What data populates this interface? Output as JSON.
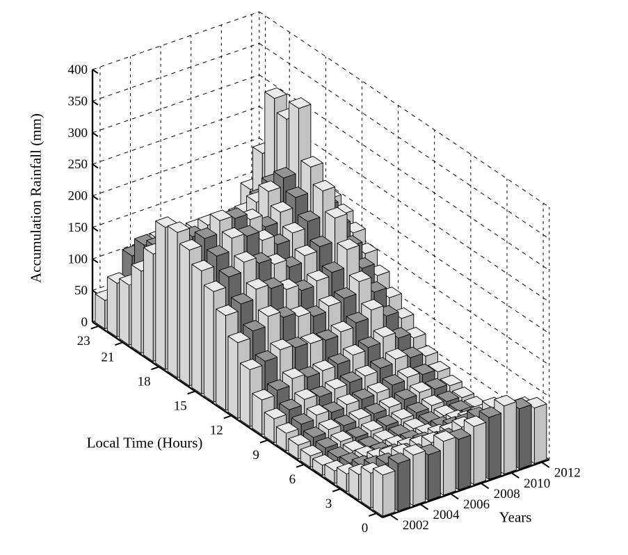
{
  "chart_data": {
    "type": "bar",
    "variant": "3d-bar (MATLAB bar3 style, grayscale)",
    "title": "",
    "xlabel": "Years",
    "ylabel": "Local Time (Hours)",
    "zlabel": "Accumulation Rainfall (mm)",
    "zlim": [
      0,
      400
    ],
    "z_ticks": [
      0,
      50,
      100,
      150,
      200,
      250,
      300,
      350,
      400
    ],
    "y_ticks": [
      0,
      3,
      6,
      9,
      12,
      15,
      18,
      21,
      23
    ],
    "x_tick_labels": [
      "2002",
      "2004",
      "2006",
      "2008",
      "2010",
      "2012"
    ],
    "hours": [
      0,
      1,
      2,
      3,
      4,
      5,
      6,
      7,
      8,
      9,
      10,
      11,
      12,
      13,
      14,
      15,
      16,
      17,
      18,
      19,
      20,
      21,
      22,
      23
    ],
    "categories": [
      "2002",
      "2003",
      "2004",
      "2005",
      "2006",
      "2007",
      "2008",
      "2009",
      "2010",
      "2011",
      "2012"
    ],
    "series": [
      {
        "name": "2002",
        "shade": "light",
        "values": [
          65,
          55,
          40,
          28,
          20,
          16,
          18,
          22,
          28,
          38,
          55,
          90,
          120,
          150,
          175,
          195,
          215,
          230,
          225,
          170,
          130,
          95,
          85,
          45
        ]
      },
      {
        "name": "2003",
        "shade": "dark",
        "values": [
          75,
          62,
          45,
          32,
          24,
          20,
          22,
          26,
          34,
          44,
          62,
          95,
          130,
          160,
          190,
          210,
          225,
          215,
          200,
          175,
          160,
          150,
          120,
          55
        ]
      },
      {
        "name": "2004",
        "shade": "light",
        "values": [
          80,
          68,
          52,
          36,
          26,
          22,
          24,
          30,
          40,
          52,
          72,
          105,
          145,
          175,
          205,
          230,
          245,
          225,
          205,
          180,
          150,
          150,
          130,
          75
        ]
      },
      {
        "name": "2005",
        "shade": "dark",
        "values": [
          72,
          60,
          48,
          34,
          24,
          20,
          22,
          28,
          36,
          48,
          66,
          100,
          135,
          168,
          195,
          225,
          240,
          220,
          195,
          165,
          135,
          108,
          105,
          58
        ]
      },
      {
        "name": "2006",
        "shade": "light",
        "values": [
          85,
          70,
          52,
          36,
          26,
          22,
          24,
          30,
          40,
          52,
          68,
          98,
          128,
          158,
          185,
          210,
          230,
          215,
          190,
          160,
          130,
          105,
          100,
          60
        ]
      },
      {
        "name": "2007",
        "shade": "dark",
        "values": [
          80,
          68,
          50,
          36,
          26,
          22,
          24,
          30,
          40,
          54,
          70,
          95,
          120,
          148,
          172,
          195,
          210,
          195,
          175,
          155,
          130,
          105,
          85,
          60
        ]
      },
      {
        "name": "2008",
        "shade": "light",
        "values": [
          92,
          78,
          56,
          40,
          28,
          24,
          26,
          32,
          42,
          56,
          76,
          100,
          128,
          155,
          182,
          205,
          225,
          245,
          215,
          185,
          152,
          122,
          95,
          68
        ]
      },
      {
        "name": "2009",
        "shade": "dark",
        "values": [
          98,
          85,
          62,
          44,
          31,
          26,
          28,
          36,
          46,
          60,
          80,
          106,
          132,
          160,
          188,
          215,
          240,
          258,
          235,
          200,
          165,
          132,
          102,
          74
        ]
      },
      {
        "name": "2010",
        "shade": "light",
        "values": [
          108,
          92,
          68,
          47,
          33,
          28,
          31,
          39,
          50,
          66,
          88,
          118,
          150,
          188,
          225,
          255,
          280,
          360,
          330,
          350,
          250,
          180,
          125,
          85
        ]
      },
      {
        "name": "2011",
        "shade": "dark",
        "values": [
          95,
          82,
          60,
          43,
          31,
          27,
          29,
          36,
          46,
          60,
          78,
          100,
          125,
          150,
          172,
          192,
          210,
          222,
          200,
          170,
          140,
          112,
          90,
          66
        ]
      },
      {
        "name": "2012",
        "shade": "light",
        "values": [
          88,
          76,
          56,
          40,
          29,
          25,
          27,
          33,
          42,
          54,
          70,
          88,
          108,
          130,
          152,
          172,
          188,
          200,
          176,
          150,
          124,
          98,
          78,
          58
        ]
      }
    ],
    "colors": {
      "light_top": "#ebebeb",
      "light_left": "#d6d6d6",
      "light_front": "#c2c2c2",
      "dark_top": "#949494",
      "dark_left": "#7a7a7a",
      "dark_front": "#646464",
      "edge": "#000000",
      "axis": "#000000",
      "grid": "#000000",
      "background": "#ffffff",
      "text": "#000000"
    },
    "grid": "dashed grid on back walls, z levels every 50",
    "legend": "none"
  }
}
